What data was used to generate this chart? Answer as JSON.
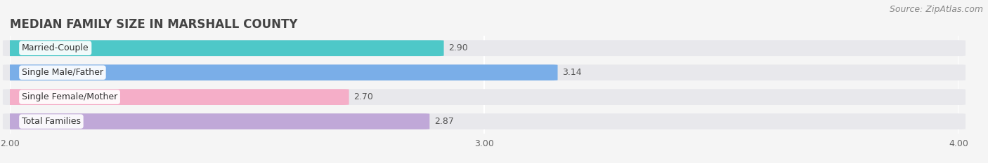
{
  "title": "MEDIAN FAMILY SIZE IN MARSHALL COUNTY",
  "source": "Source: ZipAtlas.com",
  "categories": [
    "Married-Couple",
    "Single Male/Father",
    "Single Female/Mother",
    "Total Families"
  ],
  "values": [
    2.9,
    3.14,
    2.7,
    2.87
  ],
  "bar_colors": [
    "#4ec8c8",
    "#7aaee8",
    "#f5aec8",
    "#c0a8d8"
  ],
  "xlim": [
    2.0,
    4.0
  ],
  "xticks": [
    2.0,
    3.0,
    4.0
  ],
  "xtick_labels": [
    "2.00",
    "3.00",
    "4.00"
  ],
  "background_color": "#f5f5f5",
  "bar_background_color": "#e8e8ec",
  "title_fontsize": 12,
  "source_fontsize": 9,
  "label_fontsize": 9,
  "value_fontsize": 9,
  "bar_height": 0.62
}
